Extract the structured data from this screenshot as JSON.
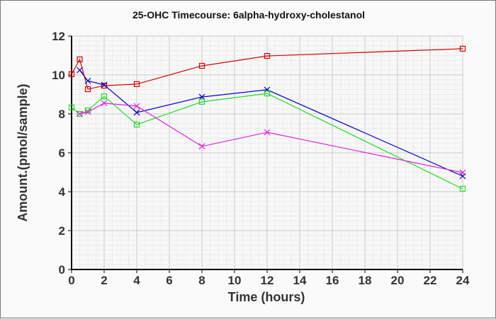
{
  "chart_data": {
    "type": "line",
    "title": "25-OHC Timecourse: 6alpha-hydroxy-cholestanol",
    "xlabel": "Time (hours)",
    "ylabel": "Amount.(pmol/sample)",
    "xlim": [
      0,
      24
    ],
    "ylim": [
      0,
      12
    ],
    "xticks": [
      "0",
      "2",
      "4",
      "6",
      "8",
      "10",
      "12",
      "14",
      "16",
      "18",
      "20",
      "22",
      "24"
    ],
    "yticks": [
      "0",
      "2",
      "4",
      "6",
      "8",
      "10",
      "12"
    ],
    "grid": true,
    "legend": "none",
    "series": [
      {
        "name": "red",
        "color": "#dd0000",
        "marker": "square",
        "x": [
          0,
          0.5,
          1,
          2,
          4,
          8,
          12,
          24
        ],
        "y": [
          10.04,
          10.8,
          9.27,
          9.45,
          9.53,
          10.47,
          10.98,
          11.35
        ]
      },
      {
        "name": "blue",
        "color": "#0000cc",
        "marker": "x",
        "x": [
          0.5,
          1,
          2,
          4,
          8,
          12,
          24
        ],
        "y": [
          10.25,
          9.7,
          9.49,
          8.07,
          8.87,
          9.24,
          4.8
        ]
      },
      {
        "name": "green",
        "color": "#22dd22",
        "marker": "square",
        "x": [
          0,
          0.5,
          1,
          2,
          4,
          8,
          12,
          24
        ],
        "y": [
          8.33,
          8.0,
          8.18,
          8.9,
          7.45,
          8.62,
          9.05,
          4.15
        ]
      },
      {
        "name": "magenta",
        "color": "#dd22dd",
        "marker": "x",
        "x": [
          0.5,
          1,
          2,
          4,
          8,
          12,
          24
        ],
        "y": [
          8.0,
          8.1,
          8.55,
          8.4,
          6.33,
          7.05,
          4.98
        ]
      }
    ]
  }
}
